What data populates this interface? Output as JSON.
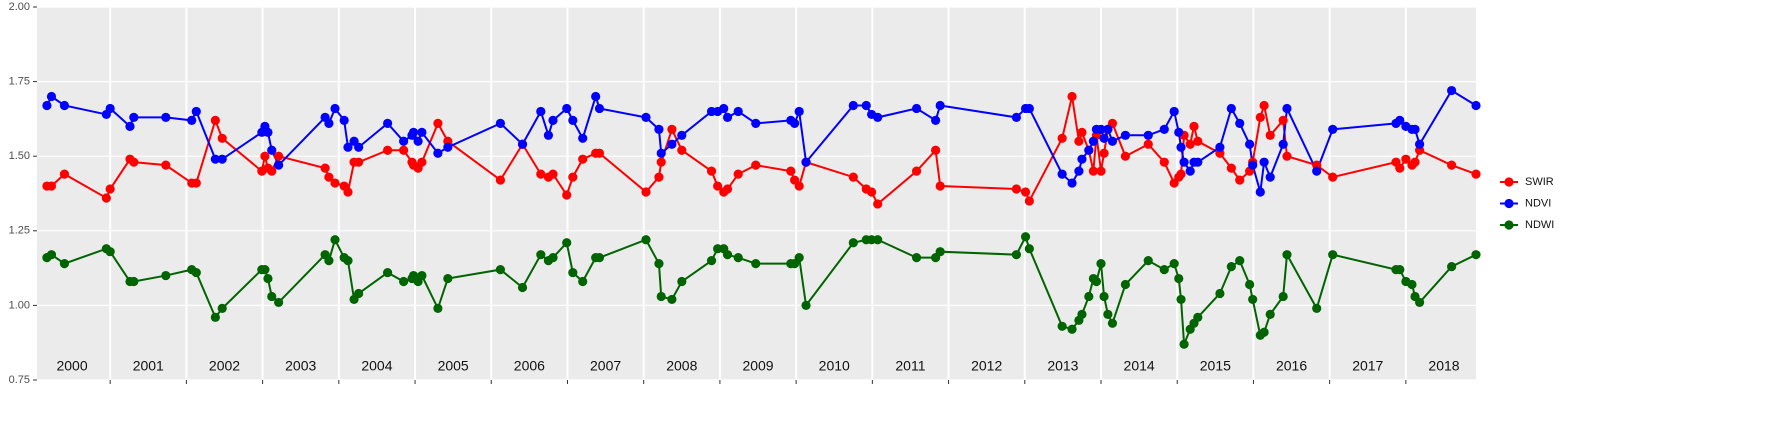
{
  "chart_data": {
    "type": "line",
    "x": [
      2000.17,
      2000.23,
      2000.4,
      2000.95,
      2001.0,
      2001.26,
      2001.31,
      2001.73,
      2002.07,
      2002.13,
      2002.38,
      2002.47,
      2002.99,
      2003.03,
      2003.07,
      2003.12,
      2003.21,
      2003.82,
      2003.87,
      2003.95,
      2004.07,
      2004.12,
      2004.2,
      2004.26,
      2004.64,
      2004.85,
      2004.96,
      2004.98,
      2005.04,
      2005.09,
      2005.3,
      2005.43,
      2006.12,
      2006.41,
      2006.65,
      2006.75,
      2006.81,
      2006.99,
      2007.07,
      2007.2,
      2007.37,
      2007.42,
      2008.03,
      2008.2,
      2008.23,
      2008.37,
      2008.5,
      2008.89,
      2008.97,
      2009.05,
      2009.1,
      2009.24,
      2009.47,
      2009.93,
      2009.98,
      2010.04,
      2010.13,
      2010.75,
      2010.92,
      2010.99,
      2011.07,
      2011.58,
      2011.83,
      2011.89,
      2012.89,
      2013.01,
      2013.06,
      2013.49,
      2013.62,
      2013.71,
      2013.75,
      2013.84,
      2013.9,
      2013.94,
      2014.0,
      2014.04,
      2014.09,
      2014.15,
      2014.32,
      2014.62,
      2014.83,
      2014.96,
      2015.02,
      2015.05,
      2015.09,
      2015.17,
      2015.22,
      2015.27,
      2015.56,
      2015.71,
      2015.82,
      2015.95,
      2015.99,
      2016.09,
      2016.14,
      2016.22,
      2016.39,
      2016.44,
      2016.83,
      2017.04,
      2017.87,
      2017.92,
      2018.0,
      2018.08,
      2018.12,
      2018.18,
      2018.6,
      2018.92
    ],
    "series": [
      {
        "name": "SWIR",
        "color": "#ff0000",
        "values": [
          1.4,
          1.4,
          1.44,
          1.36,
          1.39,
          1.49,
          1.48,
          1.47,
          1.41,
          1.41,
          1.62,
          1.56,
          1.45,
          1.5,
          1.46,
          1.45,
          1.5,
          1.46,
          1.43,
          1.41,
          1.4,
          1.38,
          1.48,
          1.48,
          1.52,
          1.52,
          1.48,
          1.47,
          1.46,
          1.48,
          1.61,
          1.55,
          1.42,
          1.54,
          1.44,
          1.43,
          1.44,
          1.37,
          1.43,
          1.49,
          1.51,
          1.51,
          1.38,
          1.43,
          1.48,
          1.59,
          1.52,
          1.45,
          1.4,
          1.38,
          1.39,
          1.44,
          1.47,
          1.45,
          1.42,
          1.4,
          1.48,
          1.43,
          1.39,
          1.38,
          1.34,
          1.45,
          1.52,
          1.4,
          1.39,
          1.38,
          1.35,
          1.56,
          1.7,
          1.55,
          1.58,
          1.52,
          1.45,
          1.57,
          1.45,
          1.51,
          1.59,
          1.61,
          1.5,
          1.54,
          1.48,
          1.41,
          1.43,
          1.44,
          1.57,
          1.54,
          1.6,
          1.55,
          1.51,
          1.46,
          1.42,
          1.45,
          1.48,
          1.63,
          1.67,
          1.57,
          1.62,
          1.5,
          1.47,
          1.43,
          1.48,
          1.46,
          1.49,
          1.47,
          1.48,
          1.52,
          1.47,
          1.44
        ]
      },
      {
        "name": "NDVI",
        "color": "#0000ff",
        "values": [
          1.67,
          1.7,
          1.67,
          1.64,
          1.66,
          1.6,
          1.63,
          1.63,
          1.62,
          1.65,
          1.49,
          1.49,
          1.58,
          1.6,
          1.58,
          1.52,
          1.47,
          1.63,
          1.61,
          1.66,
          1.62,
          1.53,
          1.55,
          1.53,
          1.61,
          1.55,
          1.57,
          1.58,
          1.55,
          1.58,
          1.51,
          1.53,
          1.61,
          1.54,
          1.65,
          1.57,
          1.62,
          1.66,
          1.62,
          1.56,
          1.7,
          1.66,
          1.63,
          1.59,
          1.51,
          1.54,
          1.57,
          1.65,
          1.65,
          1.66,
          1.63,
          1.65,
          1.61,
          1.62,
          1.61,
          1.65,
          1.48,
          1.67,
          1.67,
          1.64,
          1.63,
          1.66,
          1.62,
          1.67,
          1.63,
          1.66,
          1.66,
          1.44,
          1.41,
          1.45,
          1.49,
          1.52,
          1.55,
          1.59,
          1.59,
          1.56,
          1.59,
          1.55,
          1.57,
          1.57,
          1.59,
          1.65,
          1.58,
          1.53,
          1.48,
          1.45,
          1.48,
          1.48,
          1.53,
          1.66,
          1.61,
          1.54,
          1.47,
          1.38,
          1.48,
          1.43,
          1.54,
          1.66,
          1.45,
          1.59,
          1.61,
          1.62,
          1.6,
          1.59,
          1.59,
          1.54,
          1.72,
          1.67
        ]
      },
      {
        "name": "NDWI",
        "color": "#006400",
        "values": [
          1.16,
          1.17,
          1.14,
          1.19,
          1.18,
          1.08,
          1.08,
          1.1,
          1.12,
          1.11,
          0.96,
          0.99,
          1.12,
          1.12,
          1.09,
          1.03,
          1.01,
          1.17,
          1.15,
          1.22,
          1.16,
          1.15,
          1.02,
          1.04,
          1.11,
          1.08,
          1.09,
          1.1,
          1.08,
          1.1,
          0.99,
          1.09,
          1.12,
          1.06,
          1.17,
          1.15,
          1.16,
          1.21,
          1.11,
          1.08,
          1.16,
          1.16,
          1.22,
          1.14,
          1.03,
          1.02,
          1.08,
          1.15,
          1.19,
          1.19,
          1.17,
          1.16,
          1.14,
          1.14,
          1.14,
          1.16,
          1.0,
          1.21,
          1.22,
          1.22,
          1.22,
          1.16,
          1.16,
          1.18,
          1.17,
          1.23,
          1.19,
          0.93,
          0.92,
          0.95,
          0.97,
          1.03,
          1.09,
          1.08,
          1.14,
          1.03,
          0.97,
          0.94,
          1.07,
          1.15,
          1.12,
          1.14,
          1.09,
          1.02,
          0.87,
          0.92,
          0.94,
          0.96,
          1.04,
          1.13,
          1.15,
          1.07,
          1.02,
          0.9,
          0.91,
          0.97,
          1.03,
          1.17,
          0.99,
          1.17,
          1.12,
          1.12,
          1.08,
          1.07,
          1.03,
          1.01,
          1.13,
          1.17
        ]
      }
    ],
    "xlim": [
      2000.04,
      2018.92
    ],
    "xgrid": [
      2001,
      2002,
      2003,
      2004,
      2005,
      2006,
      2007,
      2008,
      2009,
      2010,
      2011,
      2012,
      2013,
      2014,
      2015,
      2016,
      2017,
      2018
    ],
    "xticks": [
      {
        "value": 2000.5,
        "label": "2000"
      },
      {
        "value": 2001.5,
        "label": "2001"
      },
      {
        "value": 2002.5,
        "label": "2002"
      },
      {
        "value": 2003.5,
        "label": "2003"
      },
      {
        "value": 2004.5,
        "label": "2004"
      },
      {
        "value": 2005.5,
        "label": "2005"
      },
      {
        "value": 2006.5,
        "label": "2006"
      },
      {
        "value": 2007.5,
        "label": "2007"
      },
      {
        "value": 2008.5,
        "label": "2008"
      },
      {
        "value": 2009.5,
        "label": "2009"
      },
      {
        "value": 2010.5,
        "label": "2010"
      },
      {
        "value": 2011.5,
        "label": "2011"
      },
      {
        "value": 2012.5,
        "label": "2012"
      },
      {
        "value": 2013.5,
        "label": "2013"
      },
      {
        "value": 2014.5,
        "label": "2014"
      },
      {
        "value": 2015.5,
        "label": "2015"
      },
      {
        "value": 2016.5,
        "label": "2016"
      },
      {
        "value": 2017.5,
        "label": "2017"
      },
      {
        "value": 2018.5,
        "label": "2018"
      }
    ],
    "ylim": [
      0.75,
      2.0
    ],
    "yticks": [
      0.75,
      {
        "value": 1.0,
        "label": "1.00"
      },
      1.25,
      {
        "value": 1.5,
        "label": "1.50"
      },
      1.75,
      {
        "value": 2.0,
        "label": "2.00"
      }
    ],
    "grid": true,
    "legend": "right"
  }
}
